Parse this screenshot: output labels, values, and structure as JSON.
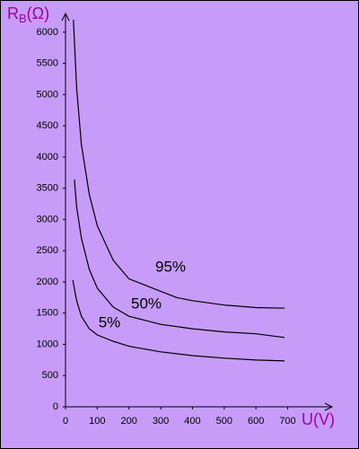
{
  "chart_data": {
    "type": "line",
    "ylabel": [
      "R",
      "B",
      "(Ω)"
    ],
    "xlabel": "U(V)",
    "xlim": [
      0,
      840
    ],
    "ylim": [
      0,
      6300
    ],
    "xticks": [
      0,
      100,
      200,
      300,
      400,
      500,
      600,
      700
    ],
    "yticks": [
      0,
      500,
      1000,
      1500,
      2000,
      2500,
      3000,
      3500,
      4000,
      4500,
      5000,
      5500,
      6000
    ],
    "series": [
      {
        "name": "95%",
        "color": "#000000",
        "x": [
          25,
          35,
          50,
          75,
          100,
          150,
          200,
          250,
          300,
          350,
          400,
          500,
          600,
          690
        ],
        "values": [
          6200,
          5100,
          4200,
          3400,
          2900,
          2350,
          2050,
          1950,
          1850,
          1750,
          1700,
          1630,
          1590,
          1580
        ]
      },
      {
        "name": "50%",
        "color": "#000000",
        "x": [
          28,
          35,
          50,
          75,
          100,
          150,
          200,
          300,
          400,
          500,
          600,
          690
        ],
        "values": [
          3640,
          3200,
          2700,
          2200,
          1900,
          1600,
          1450,
          1320,
          1250,
          1200,
          1170,
          1110
        ]
      },
      {
        "name": "5%",
        "color": "#000000",
        "x": [
          23,
          35,
          50,
          75,
          100,
          150,
          200,
          300,
          400,
          500,
          600,
          690
        ],
        "values": [
          2030,
          1700,
          1450,
          1250,
          1150,
          1050,
          970,
          880,
          820,
          780,
          750,
          735
        ]
      }
    ]
  }
}
